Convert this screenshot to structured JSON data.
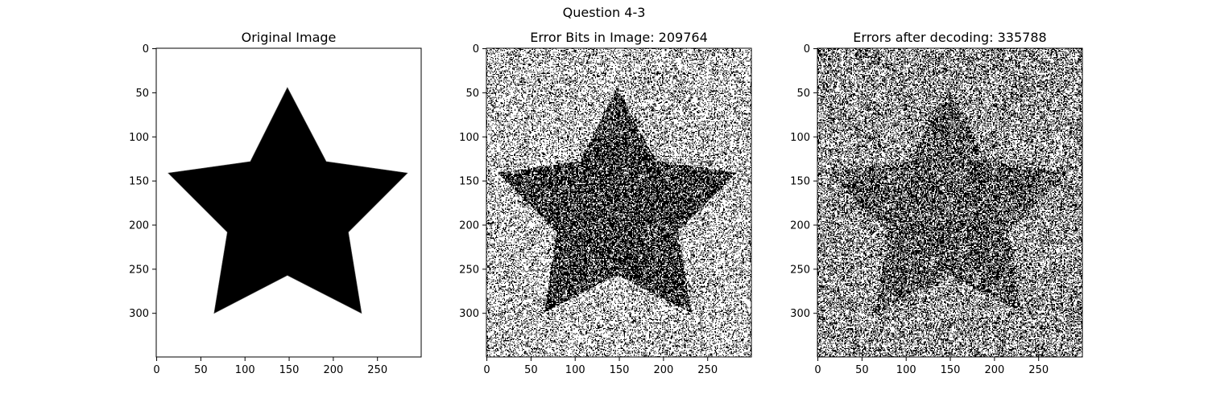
{
  "figure": {
    "suptitle": "Question 4-3"
  },
  "chart_data": [
    {
      "type": "image",
      "title": "Original Image",
      "content": "black five-pointed star on white background",
      "image_shape": [
        350,
        300
      ],
      "xlim": [
        0,
        299
      ],
      "ylim": [
        349,
        0
      ],
      "xticks": [
        0,
        50,
        100,
        150,
        200,
        250
      ],
      "yticks": [
        0,
        50,
        100,
        150,
        200,
        250,
        300
      ],
      "star_vertices": [
        [
          148,
          44
        ],
        [
          192,
          128
        ],
        [
          284,
          141
        ],
        [
          217,
          208
        ],
        [
          232,
          300
        ],
        [
          148,
          257
        ],
        [
          65,
          300
        ],
        [
          80,
          208
        ],
        [
          13,
          141
        ],
        [
          106,
          128
        ]
      ],
      "noise": "none",
      "background_gray": 255,
      "star_gray": 0
    },
    {
      "type": "image",
      "title": "Error Bits in Image: 209764",
      "content": "noisy star, random bit errors",
      "image_shape": [
        350,
        300
      ],
      "xlim": [
        0,
        299
      ],
      "ylim": [
        349,
        0
      ],
      "xticks": [
        0,
        50,
        100,
        150,
        200,
        250
      ],
      "yticks": [
        0,
        50,
        100,
        150,
        200,
        250,
        300
      ],
      "star_vertices": [
        [
          148,
          44
        ],
        [
          192,
          128
        ],
        [
          284,
          141
        ],
        [
          217,
          208
        ],
        [
          232,
          300
        ],
        [
          148,
          257
        ],
        [
          65,
          300
        ],
        [
          80,
          208
        ],
        [
          13,
          141
        ],
        [
          106,
          128
        ]
      ],
      "noise": "heavy salt-and-pepper",
      "background_gray": 185,
      "star_gray": 70
    },
    {
      "type": "image",
      "title": "Errors after decoding: 335788",
      "content": "decoded noisy star, lower contrast",
      "image_shape": [
        350,
        300
      ],
      "xlim": [
        0,
        299
      ],
      "ylim": [
        349,
        0
      ],
      "xticks": [
        0,
        50,
        100,
        150,
        200,
        250
      ],
      "yticks": [
        0,
        50,
        100,
        150,
        200,
        250,
        300
      ],
      "star_vertices": [
        [
          148,
          44
        ],
        [
          192,
          128
        ],
        [
          284,
          141
        ],
        [
          217,
          208
        ],
        [
          232,
          300
        ],
        [
          148,
          257
        ],
        [
          65,
          300
        ],
        [
          80,
          208
        ],
        [
          13,
          141
        ],
        [
          106,
          128
        ]
      ],
      "noise": "heavy, low contrast",
      "background_gray": 150,
      "star_gray": 95
    }
  ]
}
